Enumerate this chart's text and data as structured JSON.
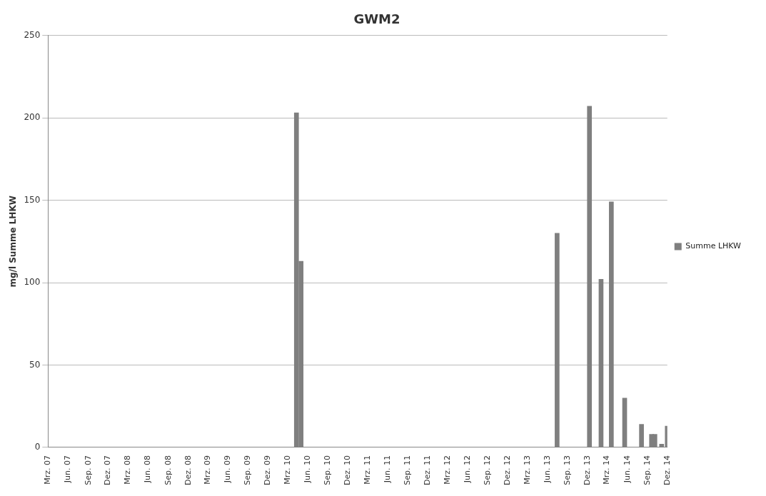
{
  "chart_data": {
    "type": "bar",
    "title": "GWM2",
    "ylabel": "mg/l Summe LHKW",
    "x": [
      "2010-04-10",
      "2010-05-01",
      "2013-07-15",
      "2013-12-10",
      "2014-02-01",
      "2014-03-20",
      "2014-05-20",
      "2014-08-05",
      "2014-09-20",
      "2014-10-05",
      "2014-11-05",
      "2014-12-01"
    ],
    "series": [
      {
        "name": "Summe LHKW",
        "color": "#7f7f7f",
        "values": [
          203,
          113,
          130,
          207,
          102,
          149,
          30,
          14,
          8,
          8,
          2,
          13
        ]
      }
    ],
    "xlim": [
      "2007-03",
      "2014-12"
    ],
    "xticks": [
      {
        "value": "2007-03",
        "label": "Mrz. 07"
      },
      {
        "value": "2007-06",
        "label": "Jun. 07"
      },
      {
        "value": "2007-09",
        "label": "Sep. 07"
      },
      {
        "value": "2007-12",
        "label": "Dez. 07"
      },
      {
        "value": "2008-03",
        "label": "Mrz. 08"
      },
      {
        "value": "2008-06",
        "label": "Jun. 08"
      },
      {
        "value": "2008-09",
        "label": "Sep. 08"
      },
      {
        "value": "2008-12",
        "label": "Dez. 08"
      },
      {
        "value": "2009-03",
        "label": "Mrz. 09"
      },
      {
        "value": "2009-06",
        "label": "Jun. 09"
      },
      {
        "value": "2009-09",
        "label": "Sep. 09"
      },
      {
        "value": "2009-12",
        "label": "Dez. 09"
      },
      {
        "value": "2010-03",
        "label": "Mrz. 10"
      },
      {
        "value": "2010-06",
        "label": "Jun. 10"
      },
      {
        "value": "2010-09",
        "label": "Sep. 10"
      },
      {
        "value": "2010-12",
        "label": "Dez. 10"
      },
      {
        "value": "2011-03",
        "label": "Mrz. 11"
      },
      {
        "value": "2011-06",
        "label": "Jun. 11"
      },
      {
        "value": "2011-09",
        "label": "Sep. 11"
      },
      {
        "value": "2011-12",
        "label": "Dez. 11"
      },
      {
        "value": "2012-03",
        "label": "Mrz. 12"
      },
      {
        "value": "2012-06",
        "label": "Jun. 12"
      },
      {
        "value": "2012-09",
        "label": "Sep. 12"
      },
      {
        "value": "2012-12",
        "label": "Dez. 12"
      },
      {
        "value": "2013-03",
        "label": "Mrz. 13"
      },
      {
        "value": "2013-06",
        "label": "Jun. 13"
      },
      {
        "value": "2013-09",
        "label": "Sep. 13"
      },
      {
        "value": "2013-12",
        "label": "Dez. 13"
      },
      {
        "value": "2014-03",
        "label": "Mrz. 14"
      },
      {
        "value": "2014-06",
        "label": "Jun. 14"
      },
      {
        "value": "2014-09",
        "label": "Sep. 14"
      },
      {
        "value": "2014-12",
        "label": "Dez. 14"
      }
    ],
    "ylim": [
      0,
      250
    ],
    "yticks": [
      0,
      50,
      100,
      150,
      200,
      250
    ],
    "grid": "y",
    "legend": "right"
  }
}
